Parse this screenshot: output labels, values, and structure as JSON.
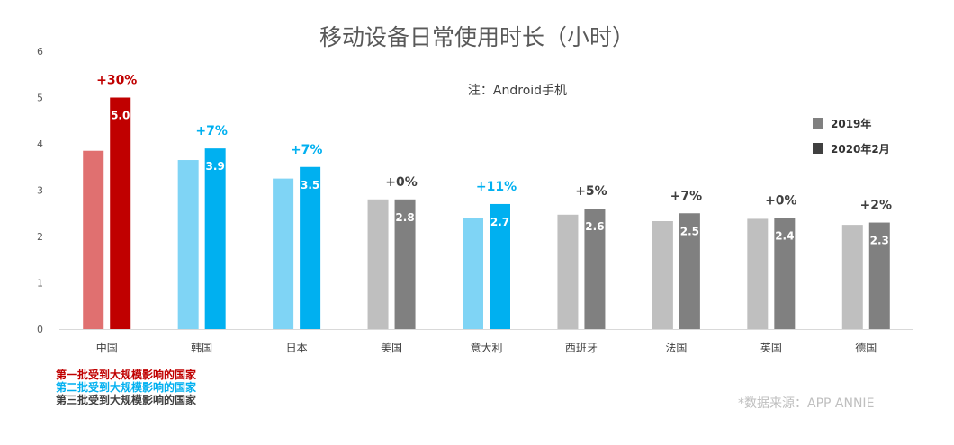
{
  "title": "移动设备日常使用时长（小时）",
  "note": "注：Android手机",
  "source": "*数据来源：APP ANNIE",
  "legend": [
    {
      "label": "2019年",
      "color": "#808080"
    },
    {
      "label": "2020年2月",
      "color": "#404040"
    }
  ],
  "groups": [
    {
      "label": "第一批受到大规模影响的国家",
      "color": "#c00000"
    },
    {
      "label": "第二批受到大规模影响的国家",
      "color": "#00b0f0"
    },
    {
      "label": "第三批受到大规模影响的国家",
      "color": "#404040"
    }
  ],
  "chart_data": {
    "type": "bar",
    "title": "移动设备日常使用时长（小时）",
    "categories": [
      "中国",
      "韩国",
      "日本",
      "美国",
      "意大利",
      "西班牙",
      "法国",
      "英国",
      "德国"
    ],
    "series": [
      {
        "name": "2019年",
        "values": [
          3.85,
          3.65,
          3.25,
          2.8,
          2.4,
          2.47,
          2.33,
          2.38,
          2.25
        ]
      },
      {
        "name": "2020年2月",
        "values": [
          5.0,
          3.9,
          3.5,
          2.8,
          2.7,
          2.6,
          2.5,
          2.4,
          2.3
        ]
      }
    ],
    "data_labels": [
      "5.0",
      "3.9",
      "3.5",
      "2.8",
      "2.7",
      "2.6",
      "2.5",
      "2.4",
      "2.3"
    ],
    "change_labels": [
      "+30%",
      "+7%",
      "+7%",
      "+0%",
      "+11%",
      "+5%",
      "+7%",
      "+0%",
      "+2%"
    ],
    "group_index": [
      0,
      1,
      1,
      2,
      1,
      2,
      2,
      2,
      2
    ],
    "ylim": [
      0,
      6
    ],
    "yticks": [
      0,
      1,
      2,
      3,
      4,
      5,
      6
    ],
    "grid": false,
    "legend_position": "right",
    "colors": {
      "group0": {
        "old": "#e07070",
        "new": "#c00000",
        "label": "#c00000"
      },
      "group1": {
        "old": "#7fd4f5",
        "new": "#00b0f0",
        "label": "#00b0f0"
      },
      "group2": {
        "old": "#bfbfbf",
        "new": "#808080",
        "label": "#404040"
      }
    }
  }
}
